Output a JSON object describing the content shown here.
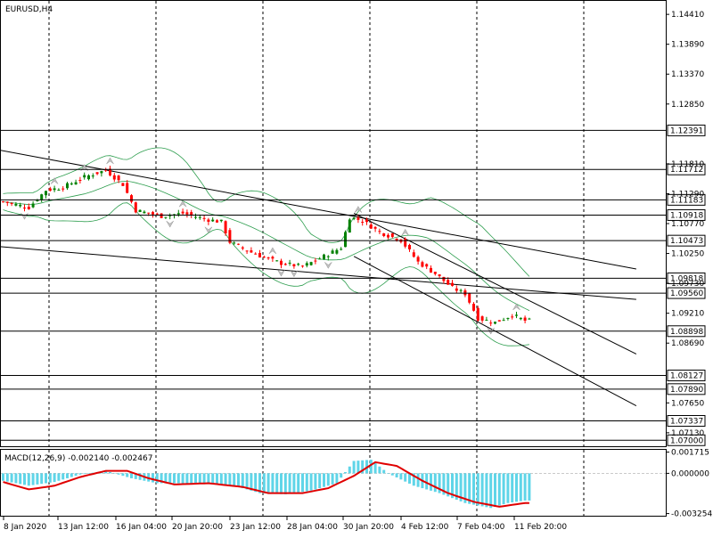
{
  "window": {
    "title": "EURUSD,H4"
  },
  "colors": {
    "background": "#ffffff",
    "axis": "#000000",
    "grid": "#000000",
    "bull": "#008000",
    "bear": "#ff0000",
    "bollinger": "#2e9e4f",
    "fractal": "#c0c0c0",
    "macd_histogram": "#5fd5e8",
    "macd_signal": "#e00000",
    "tag_bg": "#ffffff"
  },
  "chart_data": [
    {
      "type": "candlestick",
      "title": "EURUSD,H4",
      "ylim": [
        1.0688,
        1.1466
      ],
      "y_ticks": [
        "1.14410",
        "1.13890",
        "1.13370",
        "1.12850",
        "1.11810",
        "1.11290",
        "1.10770",
        "1.10250",
        "1.09730",
        "1.09210",
        "1.08690",
        "1.07650",
        "1.07130"
      ],
      "horizontal_levels": [
        "1.12391",
        "1.11712",
        "1.11183",
        "1.10918",
        "1.10473",
        "1.09818",
        "1.09560",
        "1.08898",
        "1.08127",
        "1.07890",
        "1.07337",
        "1.07000"
      ],
      "x_ticks": [
        "8 Jan 2020",
        "13 Jan 12:00",
        "16 Jan 04:00",
        "20 Jan 20:00",
        "23 Jan 12:00",
        "28 Jan 04:00",
        "30 Jan 20:00",
        "4 Feb 12:00",
        "7 Feb 04:00",
        "11 Feb 20:00"
      ],
      "close_path": [
        {
          "i": 0,
          "v": 1.1115
        },
        {
          "i": 6,
          "v": 1.1105
        },
        {
          "i": 10,
          "v": 1.1135
        },
        {
          "i": 14,
          "v": 1.114
        },
        {
          "i": 19,
          "v": 1.1158
        },
        {
          "i": 24,
          "v": 1.117
        },
        {
          "i": 28,
          "v": 1.1145
        },
        {
          "i": 31,
          "v": 1.11
        },
        {
          "i": 37,
          "v": 1.109
        },
        {
          "i": 42,
          "v": 1.1095
        },
        {
          "i": 47,
          "v": 1.1085
        },
        {
          "i": 51,
          "v": 1.108
        },
        {
          "i": 53,
          "v": 1.1045
        },
        {
          "i": 57,
          "v": 1.103
        },
        {
          "i": 61,
          "v": 1.1018
        },
        {
          "i": 65,
          "v": 1.1008
        },
        {
          "i": 70,
          "v": 1.1002
        },
        {
          "i": 75,
          "v": 1.102
        },
        {
          "i": 79,
          "v": 1.1035
        },
        {
          "i": 81,
          "v": 1.1088
        },
        {
          "i": 84,
          "v": 1.1082
        },
        {
          "i": 88,
          "v": 1.1062
        },
        {
          "i": 93,
          "v": 1.1048
        },
        {
          "i": 97,
          "v": 1.101
        },
        {
          "i": 101,
          "v": 1.099
        },
        {
          "i": 105,
          "v": 1.0965
        },
        {
          "i": 108,
          "v": 1.0955
        },
        {
          "i": 111,
          "v": 1.0912
        },
        {
          "i": 115,
          "v": 1.0905
        },
        {
          "i": 119,
          "v": 1.0918
        },
        {
          "i": 122,
          "v": 1.0908
        }
      ],
      "trendlines": [
        {
          "from": [
            -1,
            1.1205
          ],
          "to": [
            148,
            1.0998
          ]
        },
        {
          "from": [
            -1,
            1.1037
          ],
          "to": [
            148,
            1.0945
          ]
        },
        {
          "from": [
            82,
            1.1095
          ],
          "to": [
            148,
            1.085
          ]
        },
        {
          "from": [
            82,
            1.102
          ],
          "to": [
            148,
            1.076
          ]
        }
      ]
    },
    {
      "type": "bar+line",
      "label": "MACD(12,26,9) -0.002140 -0.002467",
      "ylim": [
        -0.0035,
        0.0019
      ],
      "y_ticks": [
        "0.001715",
        "0.000000",
        "-0.003254"
      ],
      "histogram_path": [
        {
          "i": 0,
          "v": -0.0006
        },
        {
          "i": 6,
          "v": -0.001
        },
        {
          "i": 12,
          "v": -0.0007
        },
        {
          "i": 18,
          "v": -0.0001
        },
        {
          "i": 24,
          "v": 0.0002
        },
        {
          "i": 30,
          "v": -0.0004
        },
        {
          "i": 36,
          "v": -0.0008
        },
        {
          "i": 42,
          "v": -0.0008
        },
        {
          "i": 48,
          "v": -0.0008
        },
        {
          "i": 54,
          "v": -0.001
        },
        {
          "i": 60,
          "v": -0.0016
        },
        {
          "i": 66,
          "v": -0.0017
        },
        {
          "i": 72,
          "v": -0.0014
        },
        {
          "i": 78,
          "v": -0.0008
        },
        {
          "i": 82,
          "v": 0.001
        },
        {
          "i": 86,
          "v": 0.0011
        },
        {
          "i": 90,
          "v": 0.0
        },
        {
          "i": 96,
          "v": -0.001
        },
        {
          "i": 102,
          "v": -0.0016
        },
        {
          "i": 108,
          "v": -0.0024
        },
        {
          "i": 114,
          "v": -0.0028
        },
        {
          "i": 118,
          "v": -0.0024
        },
        {
          "i": 122,
          "v": -0.0022
        }
      ],
      "signal_path": [
        {
          "i": 0,
          "v": -0.0007
        },
        {
          "i": 6,
          "v": -0.0013
        },
        {
          "i": 12,
          "v": -0.001
        },
        {
          "i": 18,
          "v": -0.0003
        },
        {
          "i": 24,
          "v": 0.0002
        },
        {
          "i": 29,
          "v": 0.0002
        },
        {
          "i": 34,
          "v": -0.0004
        },
        {
          "i": 40,
          "v": -0.0009
        },
        {
          "i": 48,
          "v": -0.0008
        },
        {
          "i": 56,
          "v": -0.0011
        },
        {
          "i": 62,
          "v": -0.0016
        },
        {
          "i": 70,
          "v": -0.0016
        },
        {
          "i": 76,
          "v": -0.0012
        },
        {
          "i": 82,
          "v": -0.0002
        },
        {
          "i": 87,
          "v": 0.0009
        },
        {
          "i": 92,
          "v": 0.0006
        },
        {
          "i": 98,
          "v": -0.0006
        },
        {
          "i": 104,
          "v": -0.0016
        },
        {
          "i": 110,
          "v": -0.0023
        },
        {
          "i": 116,
          "v": -0.0027
        },
        {
          "i": 122,
          "v": -0.0024
        }
      ]
    }
  ]
}
